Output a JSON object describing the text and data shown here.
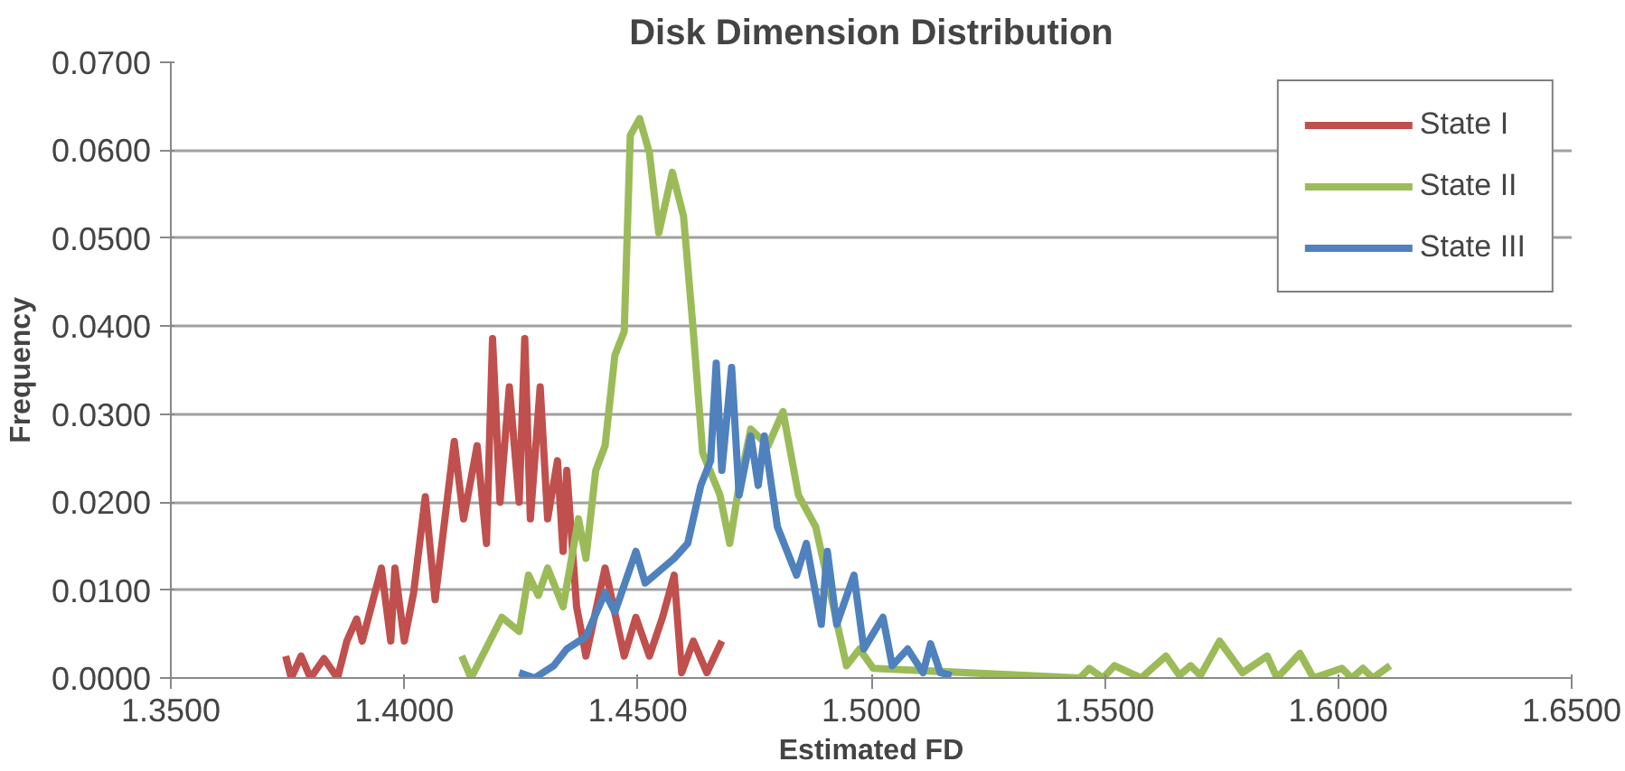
{
  "chart_data": {
    "type": "line",
    "title": "Disk Dimension Distribution",
    "xlabel": "Estimated FD",
    "ylabel": "Frequency",
    "xlim": [
      1.35,
      1.65
    ],
    "xticks": [
      {
        "value": 1.35,
        "label": "1.3500"
      },
      {
        "value": 1.4,
        "label": "1.4000"
      },
      {
        "value": 1.45,
        "label": "1.4500"
      },
      {
        "value": 1.5,
        "label": "1.5000"
      },
      {
        "value": 1.55,
        "label": "1.5500"
      },
      {
        "value": 1.6,
        "label": "1.6000"
      },
      {
        "value": 1.65,
        "label": "1.6500"
      }
    ],
    "ylim": [
      0,
      0.07
    ],
    "yticks": [
      {
        "value": 0,
        "label": "0.0000"
      },
      {
        "value": 0.01,
        "label": "0.0100"
      },
      {
        "value": 0.02,
        "label": "0.0200"
      },
      {
        "value": 0.03,
        "label": "0.0300"
      },
      {
        "value": 0.04,
        "label": "0.0400"
      },
      {
        "value": 0.05,
        "label": "0.0500"
      },
      {
        "value": 0.06,
        "label": "0.0600"
      },
      {
        "value": 0.07,
        "label": "0.0700"
      }
    ],
    "grid": "y",
    "legend": "top right",
    "line_style": "solid",
    "series": [
      {
        "name": "State I",
        "color": "#c0504d",
        "x": [
          1.3746,
          1.3758,
          1.3779,
          1.3799,
          1.3828,
          1.3857,
          1.3877,
          1.3898,
          1.391,
          1.3951,
          1.3971,
          1.398,
          1.4,
          1.402,
          1.4045,
          1.4066,
          1.4107,
          1.4127,
          1.4156,
          1.4176,
          1.4189,
          1.4205,
          1.4225,
          1.4246,
          1.4258,
          1.427,
          1.4291,
          1.4307,
          1.4328,
          1.434,
          1.4348,
          1.4369,
          1.4389,
          1.443,
          1.4471,
          1.4496,
          1.4525,
          1.4553,
          1.4578,
          1.4594,
          1.4619,
          1.4648,
          1.468
        ],
        "values": [
          0.0025,
          0,
          0.0025,
          0,
          0.0022,
          0,
          0.0042,
          0.0067,
          0.0042,
          0.0125,
          0.0042,
          0.0125,
          0.0042,
          0.0097,
          0.0206,
          0.0089,
          0.0269,
          0.0181,
          0.0264,
          0.0153,
          0.0386,
          0.02,
          0.0331,
          0.02,
          0.0386,
          0.0181,
          0.0331,
          0.0181,
          0.0247,
          0.0144,
          0.0236,
          0.0081,
          0.0025,
          0.0125,
          0.0025,
          0.0069,
          0.0025,
          0.0069,
          0.0117,
          0.0006,
          0.0042,
          0.0006,
          0.0042
        ]
      },
      {
        "name": "State II",
        "color": "#9bbb59",
        "x": [
          1.4123,
          1.4143,
          1.4209,
          1.4246,
          1.4266,
          1.4287,
          1.4307,
          1.434,
          1.4373,
          1.4389,
          1.441,
          1.443,
          1.4451,
          1.4471,
          1.4484,
          1.4504,
          1.4525,
          1.4545,
          1.4574,
          1.4598,
          1.4619,
          1.4639,
          1.4676,
          1.4697,
          1.4717,
          1.4742,
          1.4779,
          1.4811,
          1.4844,
          1.4881,
          1.4947,
          1.4975,
          1.5004,
          1.5447,
          1.5467,
          1.5496,
          1.5521,
          1.5578,
          1.5631,
          1.566,
          1.5684,
          1.5705,
          1.5746,
          1.5795,
          1.5848,
          1.5869,
          1.5918,
          1.5947,
          1.6008,
          1.6029,
          1.6053,
          1.6074,
          1.6111
        ],
        "values": [
          0.0025,
          0,
          0.0069,
          0.0053,
          0.0117,
          0.0094,
          0.0125,
          0.0081,
          0.0181,
          0.0136,
          0.0236,
          0.0264,
          0.0367,
          0.0394,
          0.0617,
          0.0636,
          0.0597,
          0.0506,
          0.0575,
          0.0525,
          0.0394,
          0.0256,
          0.0208,
          0.0153,
          0.0219,
          0.0283,
          0.0264,
          0.0303,
          0.0208,
          0.0172,
          0.0014,
          0.0033,
          0.0011,
          0,
          0.0011,
          0,
          0.0014,
          0,
          0.0025,
          0.0003,
          0.0014,
          0.0003,
          0.0042,
          0.0006,
          0.0025,
          0,
          0.0028,
          0,
          0.0011,
          0,
          0.0011,
          0,
          0.0014
        ]
      },
      {
        "name": "State III",
        "color": "#4f81bd",
        "x": [
          1.4246,
          1.4279,
          1.432,
          1.4348,
          1.4389,
          1.443,
          1.4451,
          1.4496,
          1.4516,
          1.4578,
          1.4607,
          1.4635,
          1.4656,
          1.4668,
          1.468,
          1.4701,
          1.4717,
          1.4742,
          1.4758,
          1.4771,
          1.4799,
          1.484,
          1.4861,
          1.4893,
          1.4906,
          1.4926,
          1.4963,
          1.4984,
          1.5025,
          1.5045,
          1.5078,
          1.5111,
          1.5127,
          1.5148,
          1.5172
        ],
        "values": [
          0.0006,
          0,
          0.0014,
          0.0033,
          0.0047,
          0.0097,
          0.0075,
          0.0144,
          0.0108,
          0.0136,
          0.0153,
          0.0219,
          0.0247,
          0.0358,
          0.0236,
          0.0353,
          0.0208,
          0.0275,
          0.0219,
          0.0275,
          0.0172,
          0.0117,
          0.0153,
          0.0061,
          0.0144,
          0.0061,
          0.0117,
          0.0033,
          0.0069,
          0.0014,
          0.0033,
          0.0006,
          0.0039,
          0.0006,
          0.0003
        ]
      }
    ]
  }
}
